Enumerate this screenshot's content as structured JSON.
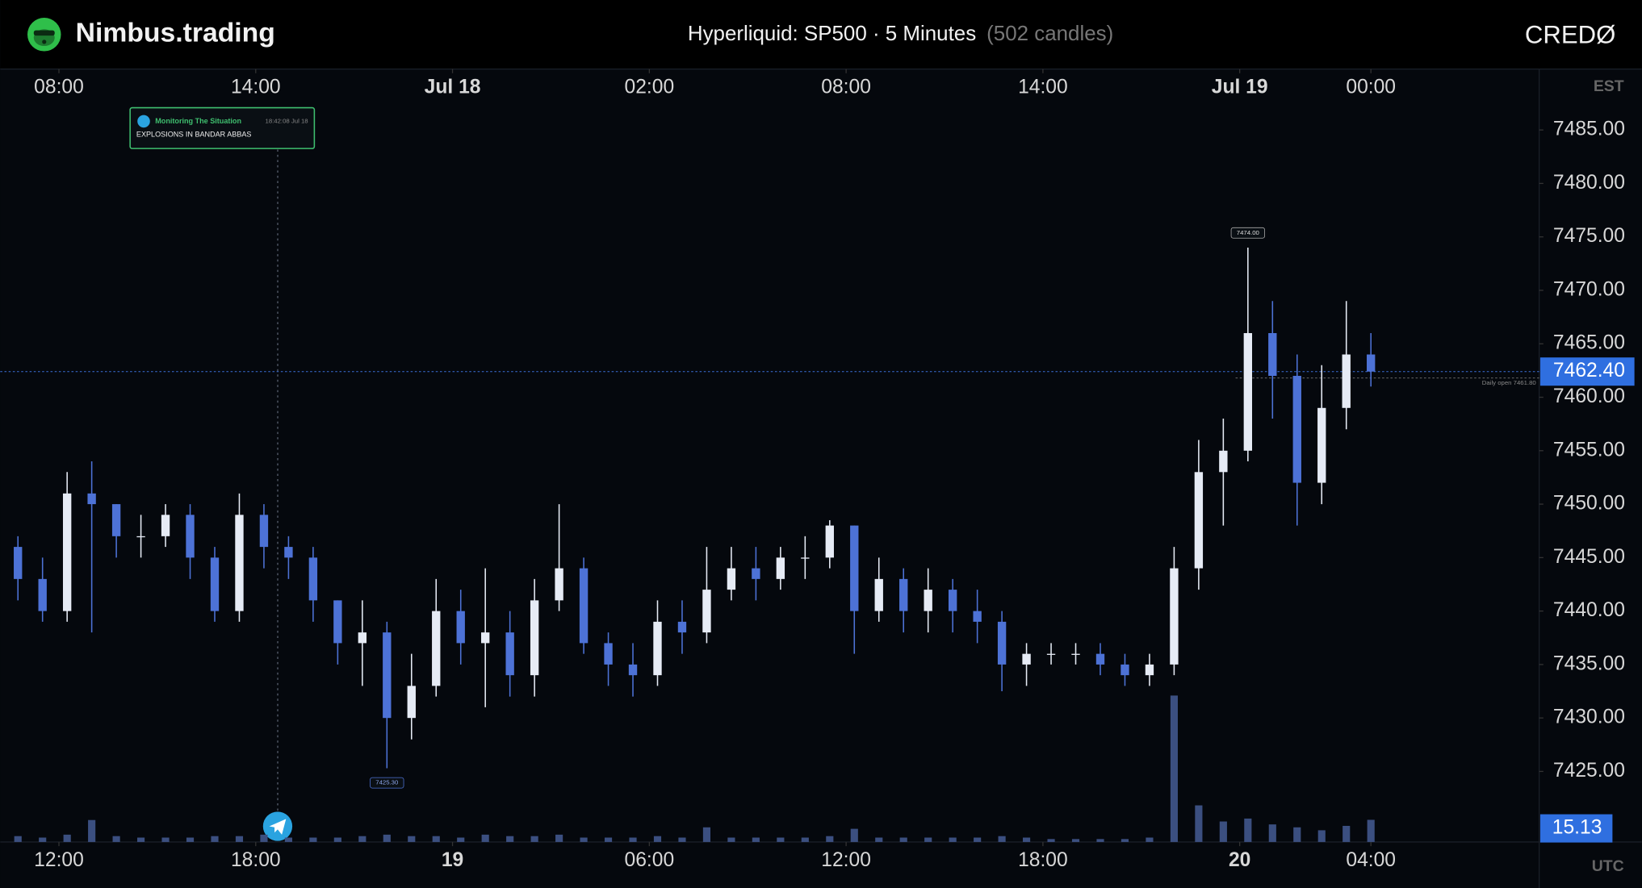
{
  "header": {
    "logo": "Nimbus.trading",
    "title": "Hyperliquid: SP500 · 5 Minutes",
    "count": "(502 candles)",
    "brand": "CREDØ"
  },
  "chart_data": {
    "type": "candlestick",
    "x": [
      10.75,
      11.5,
      12.25,
      13,
      13.75,
      14.5,
      15.25,
      16,
      16.75,
      17.5,
      18.25,
      19,
      19.75,
      20.5,
      21.25,
      22,
      22.75,
      23.5,
      24.25,
      25,
      25.75,
      26.5,
      27.25,
      28,
      28.75,
      29.5,
      30.25,
      31,
      31.75,
      32.5,
      33.25,
      34,
      34.75,
      35.5,
      36.25,
      37,
      37.75,
      38.5,
      39.25,
      40,
      40.75,
      41.5,
      42.25,
      43,
      43.75,
      44.5,
      45.25,
      46,
      46.75,
      47.5,
      48.25,
      49,
      49.75,
      50.5,
      51.25,
      52
    ],
    "open": [
      7446,
      7443,
      7440,
      7451,
      7450,
      7447,
      7447,
      7449,
      7445,
      7440,
      7449,
      7446,
      7445,
      7441,
      7437,
      7438,
      7430,
      7433,
      7440,
      7437,
      7438,
      7434,
      7441,
      7444,
      7437,
      7435,
      7434,
      7439,
      7438,
      7442,
      7444,
      7443,
      7445,
      7445,
      7448,
      7440,
      7443,
      7440,
      7442,
      7440,
      7439,
      7435,
      7436,
      7436,
      7436,
      7435,
      7434,
      7435,
      7444,
      7453,
      7455,
      7466,
      7462,
      7452,
      7459,
      7464
    ],
    "high": [
      7447,
      7445,
      7453,
      7454,
      7450,
      7449,
      7450,
      7450,
      7446,
      7451,
      7450,
      7447,
      7446,
      7441,
      7441,
      7439,
      7436,
      7443,
      7442,
      7444,
      7440,
      7443,
      7450,
      7445,
      7438,
      7437,
      7441,
      7441,
      7446,
      7446,
      7446,
      7446,
      7447,
      7448.5,
      7448,
      7445,
      7444,
      7444,
      7443,
      7442,
      7440,
      7437,
      7437,
      7437,
      7437,
      7436,
      7436,
      7446,
      7456,
      7458,
      7474,
      7469,
      7464,
      7463,
      7469,
      7466
    ],
    "low": [
      7441,
      7439,
      7439,
      7438,
      7445,
      7445,
      7446,
      7443,
      7439,
      7439,
      7444,
      7443,
      7439,
      7435,
      7433,
      7425.3,
      7428,
      7432,
      7435,
      7431,
      7432,
      7432,
      7440,
      7436,
      7433,
      7432,
      7433,
      7436,
      7437,
      7441,
      7441,
      7442,
      7443,
      7444,
      7436,
      7439,
      7438,
      7438,
      7438,
      7437,
      7432.5,
      7433,
      7435,
      7435,
      7434,
      7433,
      7433,
      7434,
      7442,
      7448,
      7454,
      7458,
      7448,
      7450,
      7457,
      7461
    ],
    "close": [
      7443,
      7440,
      7451,
      7450,
      7447,
      7447,
      7449,
      7445,
      7440,
      7449,
      7446,
      7445,
      7441,
      7437,
      7438,
      7430,
      7433,
      7440,
      7437,
      7438,
      7434,
      7441,
      7444,
      7437,
      7435,
      7434,
      7439,
      7438,
      7442,
      7444,
      7443,
      7445,
      7445,
      7448,
      7440,
      7443,
      7440,
      7442,
      7440,
      7439,
      7435,
      7436,
      7436,
      7436,
      7435,
      7434,
      7435,
      7444,
      7453,
      7455,
      7466,
      7462,
      7452,
      7459,
      7464,
      7462.4
    ],
    "volume": [
      4,
      3,
      5,
      15,
      4,
      3,
      3,
      3,
      4,
      4,
      5,
      3,
      3,
      3,
      4,
      5,
      4,
      4,
      3,
      5,
      4,
      4,
      5,
      3,
      3,
      3,
      4,
      3,
      10,
      3,
      3,
      3,
      3,
      4,
      9,
      3,
      3,
      3,
      3,
      3,
      4,
      3,
      2,
      2,
      2,
      2,
      3,
      100,
      25,
      14,
      16,
      12,
      10,
      8,
      11,
      15.13
    ],
    "up_color": "#e6ebf5",
    "down_color": "#4d72d6",
    "volume_color": "#3b4f80",
    "xlim": [
      10.37,
      57.13
    ],
    "ylim": [
      7418.4,
      7490.7
    ],
    "volume_lim": [
      0,
      100
    ],
    "xticks": [
      {
        "value": 12,
        "label": "12:00"
      },
      {
        "value": 18,
        "label": "18:00"
      },
      {
        "value": 24,
        "label": "19"
      },
      {
        "value": 30,
        "label": "06:00"
      },
      {
        "value": 36,
        "label": "12:00"
      },
      {
        "value": 42,
        "label": "18:00"
      },
      {
        "value": 48,
        "label": "20"
      },
      {
        "value": 52,
        "label": "04:00"
      }
    ],
    "x2ticks": [
      {
        "value": 12,
        "label": "08:00"
      },
      {
        "value": 18,
        "label": "14:00"
      },
      {
        "value": 24,
        "label": "Jul 18"
      },
      {
        "value": 30,
        "label": "02:00"
      },
      {
        "value": 36,
        "label": "08:00"
      },
      {
        "value": 42,
        "label": "14:00"
      },
      {
        "value": 48,
        "label": "Jul 19"
      },
      {
        "value": 52,
        "label": "00:00"
      }
    ],
    "x_axis_label": "UTC",
    "x2_axis_label": "EST",
    "yticks": [
      {
        "value": 7425,
        "label": "7425.00"
      },
      {
        "value": 7430,
        "label": "7430.00"
      },
      {
        "value": 7435,
        "label": "7435.00"
      },
      {
        "value": 7440,
        "label": "7440.00"
      },
      {
        "value": 7445,
        "label": "7445.00"
      },
      {
        "value": 7450,
        "label": "7450.00"
      },
      {
        "value": 7455,
        "label": "7455.00"
      },
      {
        "value": 7460,
        "label": "7460.00"
      },
      {
        "value": 7465,
        "label": "7465.00"
      },
      {
        "value": 7470,
        "label": "7470.00"
      },
      {
        "value": 7475,
        "label": "7475.00"
      },
      {
        "value": 7480,
        "label": "7480.00"
      },
      {
        "value": 7485,
        "label": "7485.00"
      }
    ],
    "last_price": {
      "value": 7462.4,
      "label": "7462.40"
    },
    "last_volume": {
      "value": 15.13,
      "label": "15.13"
    },
    "daily_open": {
      "value": 7461.8,
      "label": "Daily open 7461.80"
    },
    "high_marker": {
      "value": 7474,
      "label": "7474.00"
    },
    "low_marker": {
      "value": 7425.3,
      "label": "7425.30"
    },
    "annotation": {
      "title": "Monitoring The Situation",
      "time": "18:42:08 Jul 18",
      "text": "EXPLOSIONS IN BANDAR ABBAS",
      "x": 18.67
    }
  }
}
